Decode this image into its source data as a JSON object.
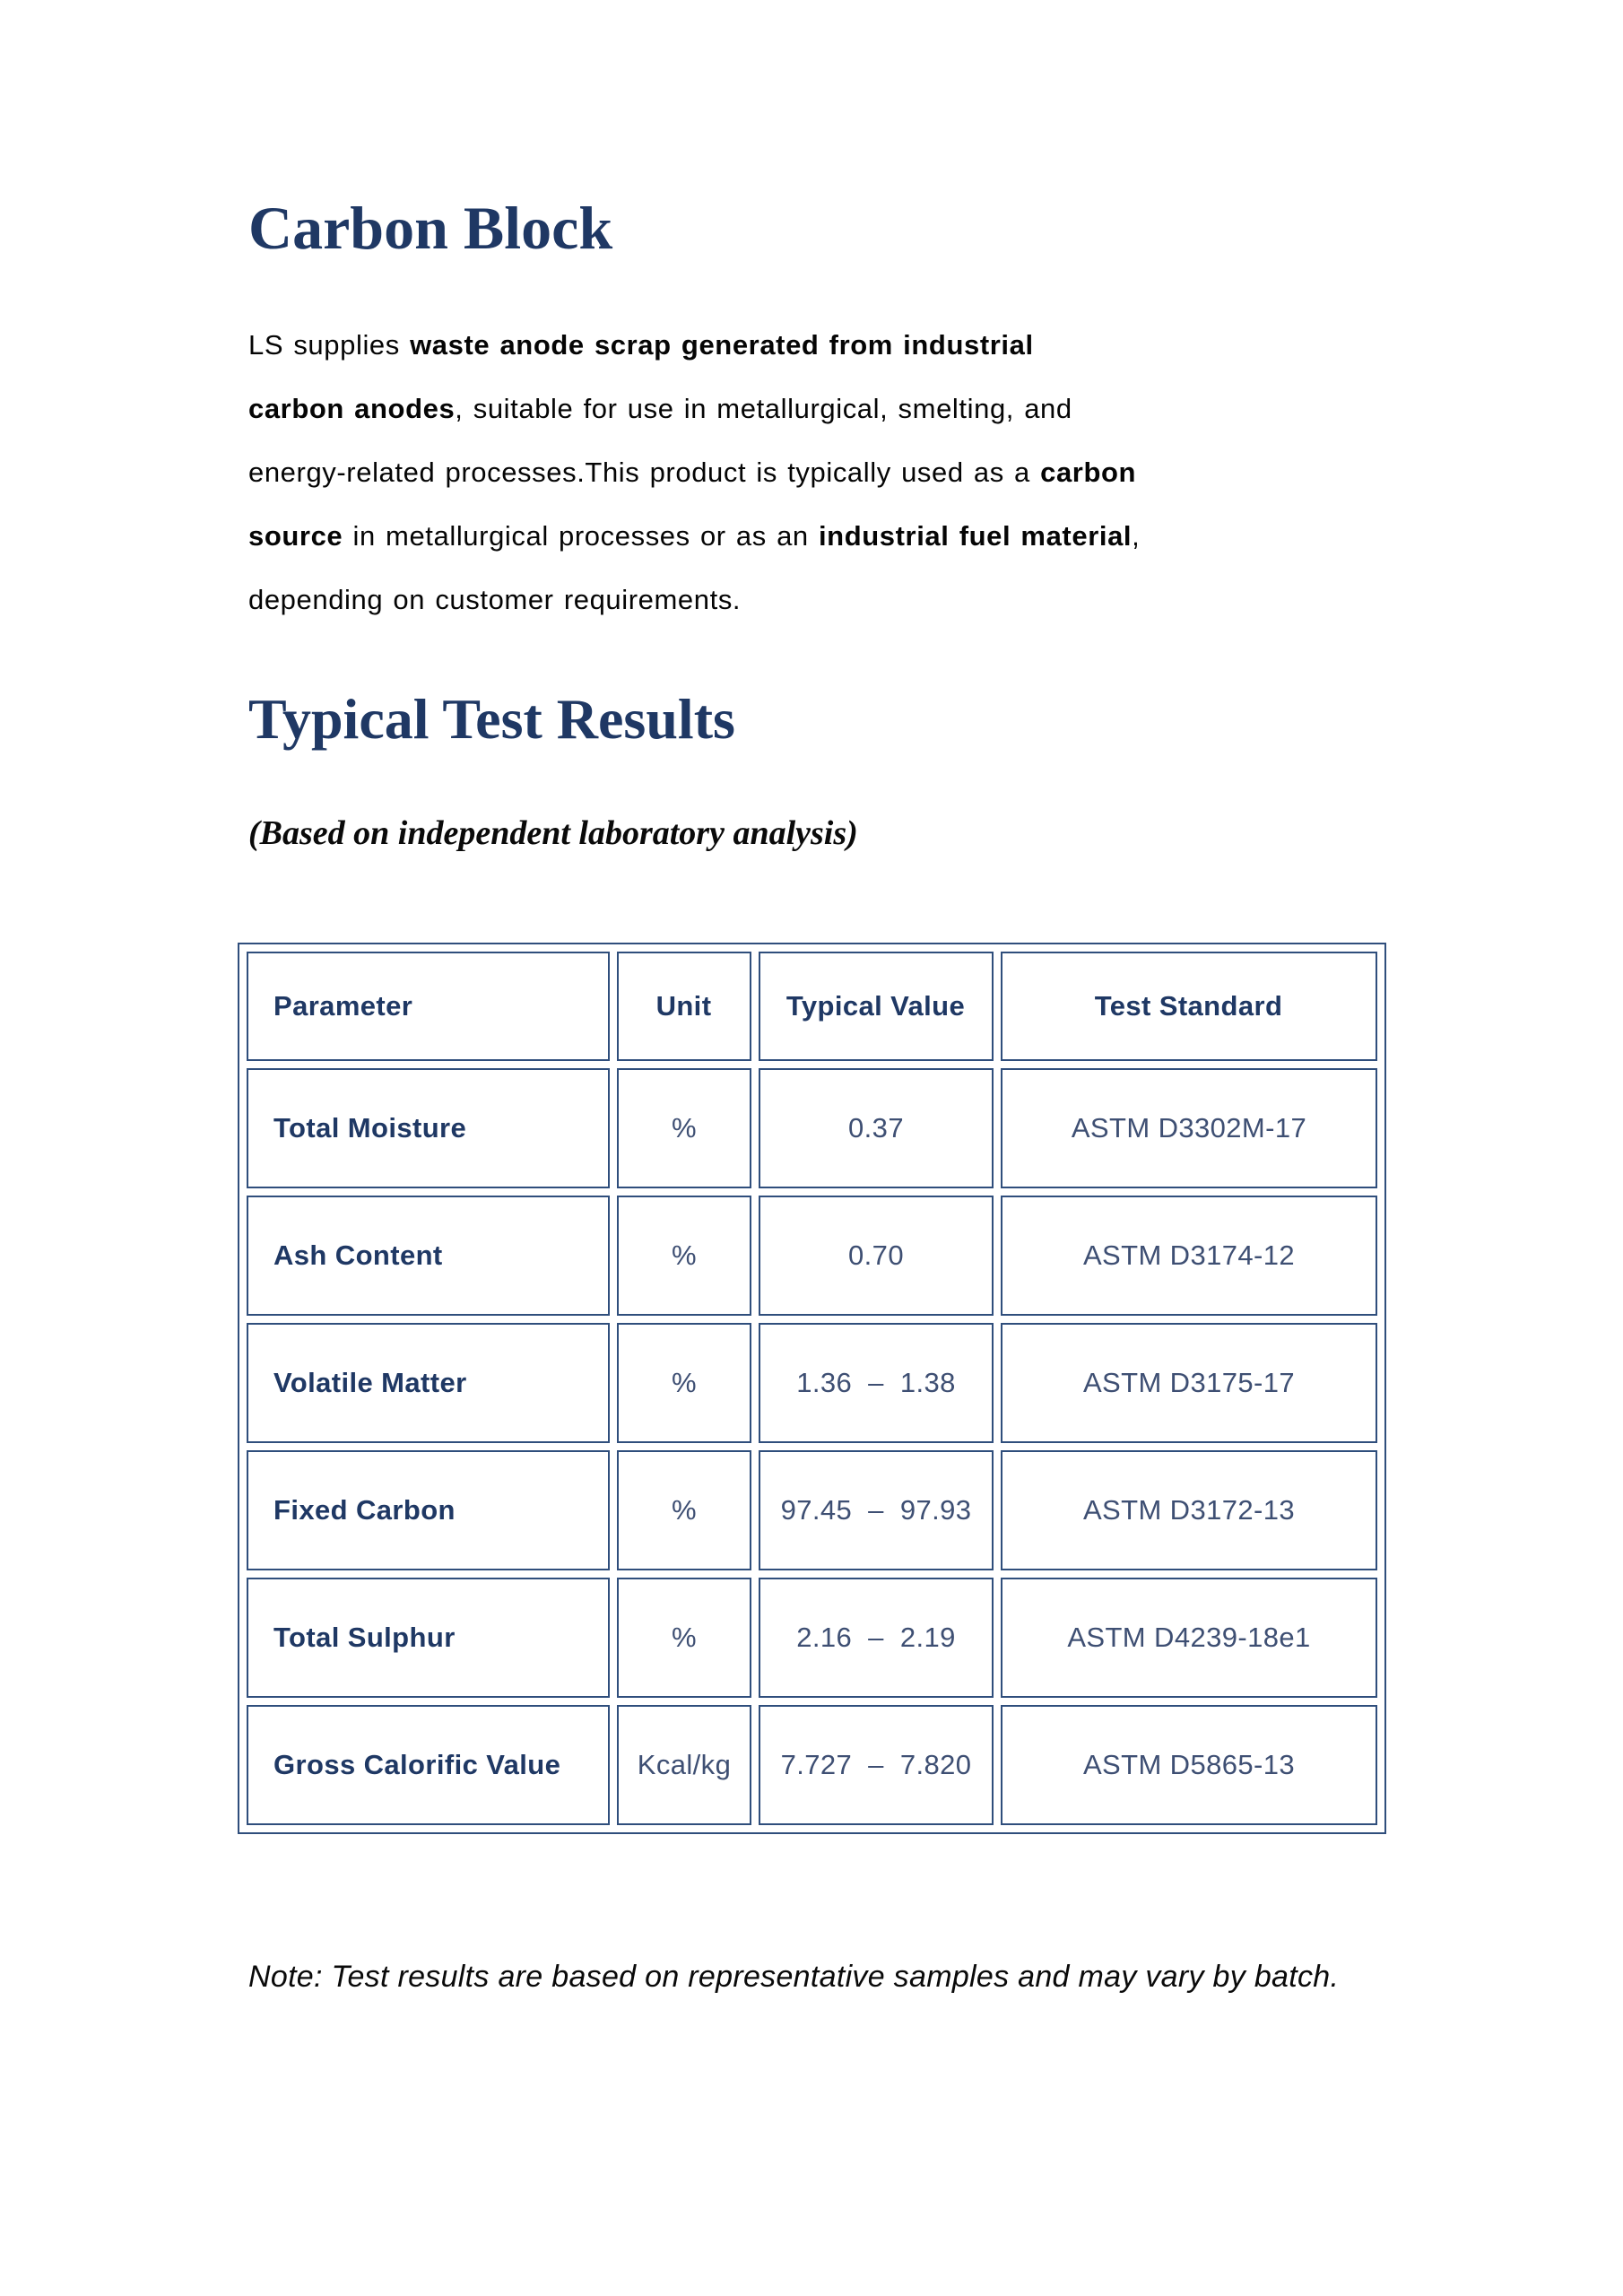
{
  "page": {
    "title": "Carbon Block",
    "section_heading": "Typical Test Results",
    "subtitle": "(Based on independent laboratory analysis)",
    "note": "Note: Test results are based on representative samples and may vary by batch."
  },
  "intro_paragraph": {
    "lines": [
      [
        {
          "text": "LS supplies ",
          "bold": false
        },
        {
          "text": "waste anode scrap generated from industrial",
          "bold": true
        }
      ],
      [
        {
          "text": "carbon anodes",
          "bold": true
        },
        {
          "text": ", suitable for use in metallurgical, smelting, and",
          "bold": false
        }
      ],
      [
        {
          "text": "energy-related processes.This product is typically used as a ",
          "bold": false
        },
        {
          "text": "carbon",
          "bold": true
        }
      ],
      [
        {
          "text": "source",
          "bold": true
        },
        {
          "text": " in metallurgical processes or as an ",
          "bold": false
        },
        {
          "text": "industrial fuel material",
          "bold": true
        },
        {
          "text": ",",
          "bold": false
        }
      ],
      [
        {
          "text": "depending on customer requirements.",
          "bold": false
        }
      ]
    ]
  },
  "table": {
    "headers": [
      "Parameter",
      "Unit",
      "Typical Value",
      "Test Standard"
    ],
    "rows": [
      {
        "parameter": "Total Moisture",
        "unit": "%",
        "typical_value": "0.37",
        "test_standard": "ASTM D3302M-17"
      },
      {
        "parameter": "Ash Content",
        "unit": "%",
        "typical_value": "0.70",
        "test_standard": "ASTM D3174-12"
      },
      {
        "parameter": "Volatile Matter",
        "unit": "%",
        "typical_value": "1.36  –  1.38",
        "test_standard": "ASTM D3175-17"
      },
      {
        "parameter": "Fixed Carbon",
        "unit": "%",
        "typical_value": "97.45  –  97.93",
        "test_standard": "ASTM D3172-13"
      },
      {
        "parameter": "Total Sulphur",
        "unit": "%",
        "typical_value": "2.16  –  2.19",
        "test_standard": "ASTM D4239-18e1"
      },
      {
        "parameter": "Gross Calorific Value",
        "unit": "Kcal/kg",
        "typical_value": "7.727  –  7.820",
        "test_standard": "ASTM D5865-13"
      }
    ]
  },
  "colors": {
    "heading_navy": "#1f3864",
    "table_border_blue": "#2f4e7c",
    "table_value_text": "#3e4f73",
    "body_text": "#050505"
  }
}
